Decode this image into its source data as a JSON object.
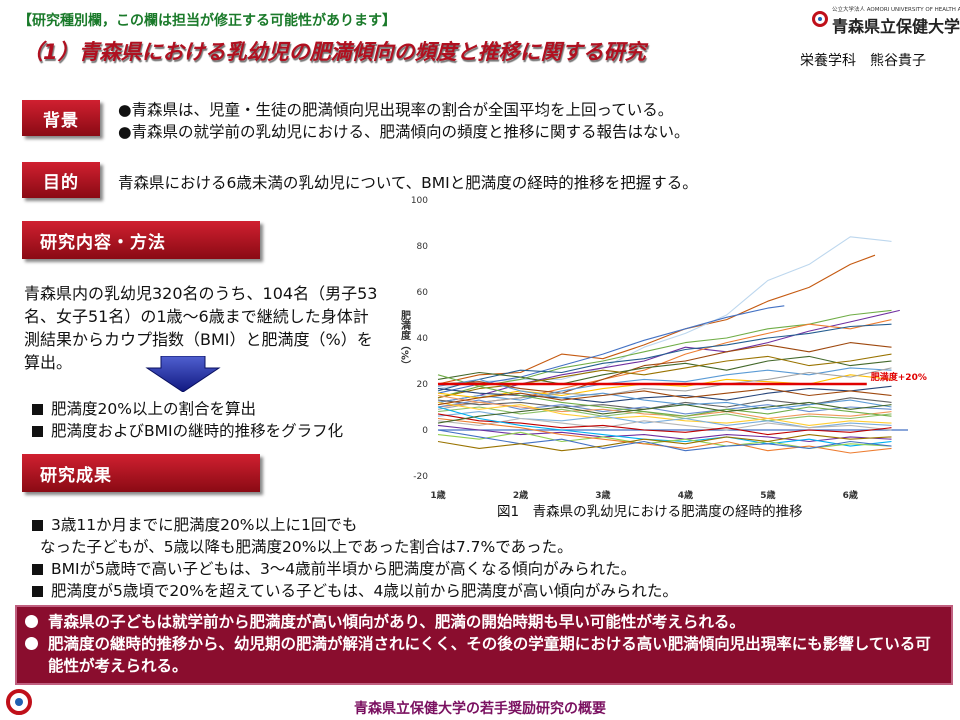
{
  "header": {
    "notice": "【研究種別欄，この欄は担当が修正する可能性があります】",
    "title": "（1）青森県における乳幼児の肥満傾向の頻度と推移に関する研究",
    "author": "栄養学科　熊谷貴子",
    "logo_sub": "公立大学法人 AOMORI UNIVERSITY OF HEALTH AND WELFARE",
    "logo_name": "青森県立保健大学"
  },
  "sections": {
    "background": {
      "label": "背景",
      "lines": [
        "●青森県は、児童・生徒の肥満傾向児出現率の割合が全国平均を上回っている。",
        "●青森県の就学前の乳幼児における、肥満傾向の頻度と推移に関する報告はない。"
      ]
    },
    "objective": {
      "label": "目的",
      "text": "青森県における6歳未満の乳幼児について、BMIと肥満度の経時的推移を把握する。"
    },
    "methods": {
      "label": "研究内容・方法",
      "text": "青森県内の乳幼児320名のうち、104名（男子53名、女子51名）の1歳～6歳まで継続した身体計測結果からカウプ指数（BMI）と肥満度（%）を算出。",
      "bullets": [
        "肥満度20%以上の割合を算出",
        "肥満度およびBMIの継時的推移をグラフ化"
      ]
    },
    "results": {
      "label": "研究成果",
      "items": [
        "3歳11か月までに肥満度20%以上に1回でも",
        "なった子どもが、5歳以降も肥満度20%以上であった割合は7.7%であった。",
        "BMIが5歳時で高い子どもは、3～4歳前半頃から肥満度が高くなる傾向がみられた。",
        "肥満度が5歳頃で20%を超えている子どもは、4歳以前から肥満度が高い傾向がみられた。"
      ]
    }
  },
  "conclusion": {
    "items": [
      "青森県の子どもは就学前から肥満度が高い傾向があり、肥満の開始時期も早い可能性が考えられる。",
      "肥満度の継時的推移から、幼児期の肥満が解消されにくく、その後の学童期における高い肥満傾向児出現率にも影響している可能性が考えられる。"
    ]
  },
  "footer": {
    "text": "青森県立保健大学の若手奨励研究の概要"
  },
  "chart_data": {
    "type": "line",
    "title": "",
    "caption": "図1　青森県の乳幼児における肥満度の経時的推移",
    "xlabel": "",
    "ylabel": "肥満度（%）",
    "ylim": [
      -20,
      100
    ],
    "yticks": [
      -20,
      0,
      20,
      40,
      60,
      80,
      100
    ],
    "xlim": [
      1,
      6.7
    ],
    "xticks": [
      "1歳",
      "2歳",
      "3歳",
      "4歳",
      "5歳",
      "6歳"
    ],
    "reference_line": {
      "value": 20,
      "label": "肥満度+20%",
      "color": "#e00000"
    },
    "grid": false,
    "legend": "none",
    "palette": [
      "#4472c4",
      "#ed7d31",
      "#a5a5a5",
      "#ffc000",
      "#5b9bd5",
      "#70ad47",
      "#264478",
      "#9e480e",
      "#636363",
      "#997300",
      "#255e91",
      "#43682b",
      "#698ed0",
      "#f1975a",
      "#b7b7b7",
      "#ffcd33",
      "#7cafdd",
      "#8cc168",
      "#c00000",
      "#7030a0",
      "#00b0f0",
      "#92d050"
    ],
    "series": [
      {
        "x": [
          1,
          1.5,
          2,
          2.5,
          3,
          3.5,
          4,
          4.5,
          5,
          5.5,
          6,
          6.3
        ],
        "values": [
          20,
          24,
          25,
          33,
          31,
          37,
          44,
          48,
          56,
          62,
          72,
          76
        ],
        "color": "#c55a11"
      },
      {
        "x": [
          1,
          1.5,
          2,
          2.5,
          3,
          3.5,
          4,
          4.5,
          5,
          5.5,
          6,
          6.5
        ],
        "values": [
          18,
          21,
          22,
          22,
          27,
          36,
          42,
          50,
          65,
          72,
          84,
          82
        ],
        "color": "#bdd7ee"
      },
      {
        "x": [
          1,
          1.5,
          2,
          2.5,
          3,
          3.5,
          4,
          4.5,
          5,
          5.5,
          6,
          6.6
        ],
        "values": [
          12,
          15,
          20,
          24,
          27,
          30,
          36,
          34,
          38,
          43,
          47,
          52
        ],
        "color": "#7030a0"
      },
      {
        "x": [
          1,
          1.5,
          2,
          2.5,
          3,
          3.5,
          4,
          4.5,
          5,
          5.2
        ],
        "values": [
          16,
          20,
          23,
          28,
          33,
          39,
          44,
          49,
          53,
          54
        ],
        "color": "#4472c4"
      },
      {
        "x": [
          1,
          1.5,
          2,
          2.5,
          3,
          3.5,
          4,
          4.5,
          5,
          5.5,
          6,
          6.5
        ],
        "values": [
          14,
          19,
          22,
          27,
          30,
          34,
          38,
          40,
          44,
          46,
          50,
          52
        ],
        "color": "#70ad47"
      },
      {
        "x": [
          1,
          1.5,
          2,
          2.5,
          3,
          3.5,
          4,
          4.5,
          5,
          5.5,
          6,
          6.5
        ],
        "values": [
          10,
          12,
          14,
          18,
          22,
          26,
          33,
          38,
          42,
          46,
          44,
          48
        ],
        "color": "#ed7d31"
      },
      {
        "x": [
          1,
          1.5,
          2,
          2.5,
          3,
          3.5,
          4,
          4.5,
          5,
          5.5,
          6,
          6.5
        ],
        "values": [
          17,
          22,
          26,
          25,
          29,
          31,
          35,
          37,
          40,
          42,
          45,
          46
        ],
        "color": "#255e91"
      },
      {
        "x": [
          1,
          1.5,
          2,
          2.5,
          3,
          3.5,
          4,
          4.5,
          5,
          5.5,
          6,
          6.5
        ],
        "values": [
          20,
          21,
          18,
          16,
          22,
          28,
          30,
          34,
          37,
          34,
          38,
          36
        ],
        "color": "#9e480e"
      },
      {
        "x": [
          1,
          1.5,
          2,
          2.5,
          3,
          3.5,
          4,
          4.5,
          5,
          5.5,
          6,
          6.5
        ],
        "values": [
          22,
          25,
          23,
          20,
          24,
          27,
          29,
          26,
          30,
          32,
          28,
          30
        ],
        "color": "#43682b"
      },
      {
        "x": [
          1,
          1.5,
          2,
          2.5,
          3,
          3.5,
          4,
          4.5,
          5,
          5.5,
          6,
          6.5
        ],
        "values": [
          14,
          18,
          20,
          23,
          26,
          24,
          27,
          30,
          32,
          28,
          30,
          33
        ],
        "color": "#997300"
      },
      {
        "x": [
          1,
          1.5,
          2,
          2.5,
          3,
          3.5,
          4,
          4.5,
          5,
          5.5,
          6,
          6.5
        ],
        "values": [
          12,
          15,
          13,
          17,
          20,
          22,
          21,
          24,
          26,
          24,
          27,
          26
        ],
        "color": "#5b9bd5"
      },
      {
        "x": [
          1,
          1.5,
          2,
          2.5,
          3,
          3.5,
          4,
          4.5,
          5,
          5.5,
          6,
          6.5
        ],
        "values": [
          16,
          14,
          17,
          15,
          18,
          20,
          19,
          22,
          21,
          20,
          24,
          22
        ],
        "color": "#ffc000"
      },
      {
        "x": [
          1,
          1.5,
          2,
          2.5,
          3,
          3.5,
          4,
          4.5,
          5,
          5.5,
          6,
          6.5
        ],
        "values": [
          9,
          12,
          14,
          16,
          15,
          18,
          17,
          20,
          22,
          25,
          23,
          27
        ],
        "color": "#a5a5a5"
      },
      {
        "x": [
          1,
          1.5,
          2,
          2.5,
          3,
          3.5,
          4,
          4.5,
          5,
          5.5,
          6,
          6.5
        ],
        "values": [
          18,
          16,
          15,
          14,
          12,
          14,
          15,
          13,
          16,
          18,
          17,
          19
        ],
        "color": "#264478"
      },
      {
        "x": [
          1,
          1.5,
          2,
          2.5,
          3,
          3.5,
          4,
          4.5,
          5,
          5.5,
          6,
          6.5
        ],
        "values": [
          13,
          11,
          12,
          10,
          11,
          9,
          12,
          10,
          13,
          11,
          14,
          12
        ],
        "color": "#636363"
      },
      {
        "x": [
          1,
          1.5,
          2,
          2.5,
          3,
          3.5,
          4,
          4.5,
          5,
          5.5,
          6,
          6.5
        ],
        "values": [
          10,
          13,
          9,
          11,
          8,
          10,
          7,
          9,
          11,
          8,
          10,
          9
        ],
        "color": "#698ed0"
      },
      {
        "x": [
          1,
          1.5,
          2,
          2.5,
          3,
          3.5,
          4,
          4.5,
          5,
          5.5,
          6,
          6.5
        ],
        "values": [
          15,
          12,
          10,
          8,
          9,
          7,
          6,
          8,
          5,
          7,
          6,
          8
        ],
        "color": "#f1975a"
      },
      {
        "x": [
          1,
          1.5,
          2,
          2.5,
          3,
          3.5,
          4,
          4.5,
          5,
          5.5,
          6,
          6.5
        ],
        "values": [
          8,
          10,
          7,
          9,
          6,
          8,
          5,
          7,
          4,
          6,
          5,
          7
        ],
        "color": "#8cc168"
      },
      {
        "x": [
          1,
          1.5,
          2,
          2.5,
          3,
          3.5,
          4,
          4.5,
          5,
          5.5,
          6,
          6.5
        ],
        "values": [
          12,
          9,
          11,
          7,
          5,
          6,
          4,
          3,
          5,
          2,
          4,
          3
        ],
        "color": "#ffcd33"
      },
      {
        "x": [
          1,
          1.5,
          2,
          2.5,
          3,
          3.5,
          4,
          4.5,
          5,
          5.5,
          6,
          6.5
        ],
        "values": [
          6,
          8,
          5,
          4,
          6,
          3,
          5,
          2,
          4,
          1,
          3,
          2
        ],
        "color": "#7cafdd"
      },
      {
        "x": [
          1,
          1.5,
          2,
          2.5,
          3,
          3.5,
          4,
          4.5,
          5,
          5.5,
          6,
          6.5
        ],
        "values": [
          4,
          2,
          5,
          3,
          1,
          4,
          2,
          0,
          3,
          1,
          2,
          0
        ],
        "color": "#b7b7b7"
      },
      {
        "x": [
          1,
          1.5,
          2,
          2.5,
          3,
          3.5,
          4,
          4.5,
          5,
          5.5,
          6,
          6.5
        ],
        "values": [
          7,
          4,
          3,
          1,
          2,
          0,
          -1,
          1,
          -2,
          0,
          -1,
          1
        ],
        "color": "#c00000"
      },
      {
        "x": [
          1,
          1.5,
          2,
          2.5,
          3,
          3.5,
          4,
          4.5,
          5,
          5.5,
          6,
          6.5
        ],
        "values": [
          2,
          0,
          -2,
          -1,
          -3,
          -2,
          -4,
          -2,
          -3,
          -5,
          -3,
          -4
        ],
        "color": "#7030a0"
      },
      {
        "x": [
          1,
          1.5,
          2,
          2.5,
          3,
          3.5,
          4,
          4.5,
          5,
          5.5,
          6,
          6.5
        ],
        "values": [
          10,
          5,
          2,
          0,
          -2,
          -4,
          -5,
          -3,
          -6,
          -4,
          -7,
          -5
        ],
        "color": "#00b0f0"
      },
      {
        "x": [
          1,
          1.5,
          2,
          2.5,
          3,
          3.5,
          4,
          4.5,
          5,
          5.5,
          6,
          6.5
        ],
        "values": [
          -2,
          -4,
          -1,
          -5,
          -3,
          -6,
          -4,
          -7,
          -5,
          -8,
          -6,
          -7
        ],
        "color": "#92d050"
      },
      {
        "x": [
          1,
          1.5,
          2,
          2.5,
          3,
          3.5,
          4,
          4.5,
          5,
          5.5,
          6,
          6.5
        ],
        "values": [
          5,
          3,
          1,
          -2,
          -4,
          -6,
          -8,
          -5,
          -9,
          -7,
          -10,
          -8
        ],
        "color": "#ed7d31"
      },
      {
        "x": [
          1,
          1.5,
          2,
          2.5,
          3,
          3.5,
          4,
          4.5,
          5,
          5.5,
          6,
          6.5
        ],
        "values": [
          0,
          -3,
          -6,
          -4,
          -8,
          -5,
          -9,
          -7,
          -6,
          -8,
          -5,
          -7
        ],
        "color": "#4472c4"
      },
      {
        "x": [
          1,
          1.5,
          2,
          2.5,
          3,
          3.5,
          4,
          4.5,
          5,
          5.5,
          6,
          6.5
        ],
        "values": [
          -5,
          -8,
          -6,
          -9,
          -7,
          -4,
          -6,
          -3,
          -5,
          -2,
          -4,
          -3
        ],
        "color": "#997300"
      },
      {
        "x": [
          1,
          1.5,
          2,
          2.5,
          3,
          3.5,
          4,
          4.5,
          5,
          5.5,
          6,
          6.5
        ],
        "values": [
          24,
          19,
          15,
          12,
          10,
          8,
          6,
          9,
          7,
          10,
          8,
          6
        ],
        "color": "#70ad47"
      },
      {
        "x": [
          1,
          1.5,
          2,
          2.5,
          3,
          3.5,
          4,
          4.5,
          5,
          5.5,
          6,
          6.5
        ],
        "values": [
          19,
          22,
          17,
          14,
          16,
          13,
          11,
          12,
          9,
          11,
          13,
          10
        ],
        "color": "#5b9bd5"
      },
      {
        "x": [
          1,
          1.5,
          2,
          2.5,
          3,
          3.5,
          4,
          4.5,
          5,
          5.5,
          6,
          6.5
        ],
        "values": [
          11,
          14,
          16,
          13,
          15,
          17,
          14,
          16,
          18,
          15,
          17,
          15
        ],
        "color": "#9e480e"
      },
      {
        "x": [
          1,
          1.5,
          2,
          2.5,
          3,
          3.5,
          4,
          4.5,
          5,
          5.5,
          6,
          6.5
        ],
        "values": [
          3,
          6,
          8,
          10,
          7,
          9,
          11,
          8,
          10,
          12,
          9,
          11
        ],
        "color": "#43682b"
      }
    ]
  }
}
